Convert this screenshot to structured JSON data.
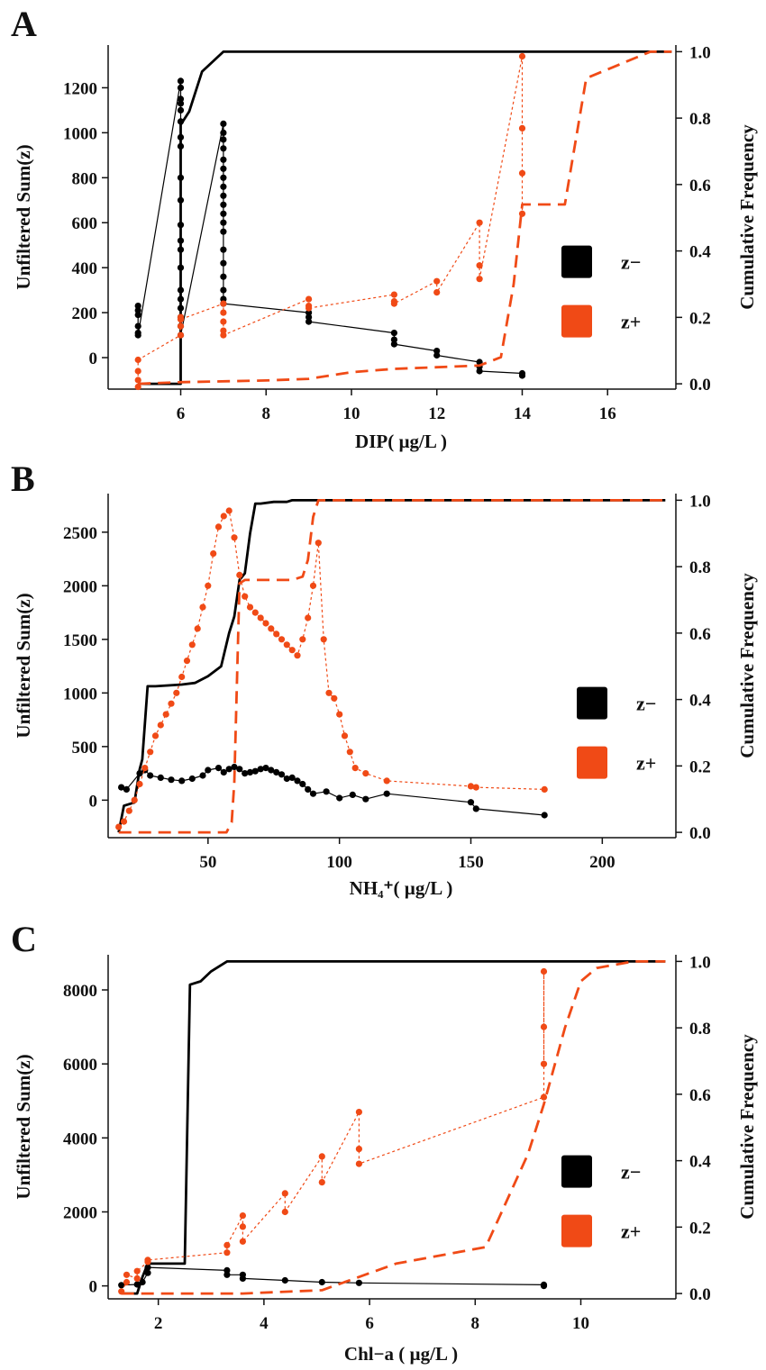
{
  "colors": {
    "z_minus": "#000000",
    "z_plus": "#f04a16",
    "axis": "#111111"
  },
  "chart_data": [
    {
      "type": "line",
      "panel": "A",
      "xlabel": "DIP( µg/L )",
      "ylabel": "Unfiltered Sum(z)",
      "y2label": "Cumulative Frequency",
      "xlim": [
        4.3,
        17.6
      ],
      "ylim": [
        -140,
        1390
      ],
      "y2lim": [
        -0.016,
        1.02
      ],
      "xticks": [
        6,
        8,
        10,
        12,
        14,
        16
      ],
      "yticks": [
        0,
        200,
        400,
        600,
        800,
        1000,
        1200
      ],
      "y2ticks": [
        0.0,
        0.2,
        0.4,
        0.6,
        0.8,
        1.0
      ],
      "legend": [
        {
          "label": "z−",
          "color": "#000000"
        },
        {
          "label": "z+",
          "color": "#f04a16"
        }
      ],
      "legend_position": "center-right",
      "series": [
        {
          "name": "z− sum",
          "axis": "left",
          "style": "points-solid-thin",
          "color": "#000000",
          "x": [
            5,
            5,
            5,
            5,
            5,
            5,
            6,
            6,
            6,
            6,
            6,
            6,
            6,
            6,
            6,
            6,
            6,
            6,
            6,
            6,
            6,
            6,
            6,
            6,
            6,
            6,
            7,
            7,
            7,
            7,
            7,
            7,
            7,
            7,
            7,
            7,
            7,
            7,
            7,
            7,
            7,
            7,
            7,
            7,
            7,
            9,
            9,
            9,
            11,
            11,
            11,
            12,
            12,
            13,
            13,
            13,
            14,
            14
          ],
          "y": [
            230,
            210,
            190,
            140,
            110,
            100,
            1230,
            1200,
            1150,
            1130,
            1100,
            1050,
            980,
            940,
            800,
            700,
            590,
            520,
            480,
            400,
            300,
            260,
            220,
            180,
            140,
            100,
            1040,
            1000,
            970,
            930,
            880,
            840,
            800,
            760,
            720,
            680,
            640,
            600,
            560,
            480,
            420,
            360,
            300,
            260,
            240,
            200,
            180,
            160,
            110,
            80,
            60,
            30,
            10,
            -20,
            -40,
            -60,
            -70,
            -80
          ]
        },
        {
          "name": "z− cumulative",
          "axis": "right",
          "style": "solid-thick",
          "color": "#000000",
          "x": [
            5,
            5.4,
            6,
            6,
            6.2,
            6.5,
            7,
            17.5
          ],
          "y": [
            0.0,
            0.0,
            0.0,
            0.78,
            0.82,
            0.94,
            1.0,
            1.0
          ]
        },
        {
          "name": "z+ sum",
          "axis": "left",
          "style": "points-dotted-thin",
          "color": "#f04a16",
          "x": [
            5,
            5,
            5,
            5,
            6,
            6,
            6,
            6,
            7,
            7,
            7,
            7,
            7,
            9,
            9,
            9,
            11,
            11,
            11,
            12,
            12,
            13,
            13,
            13,
            14,
            14,
            14,
            14
          ],
          "y": [
            -130,
            -100,
            -60,
            -10,
            100,
            140,
            180,
            170,
            240,
            200,
            160,
            120,
            100,
            260,
            230,
            220,
            280,
            250,
            240,
            340,
            290,
            600,
            410,
            350,
            1340,
            1020,
            820,
            640
          ]
        },
        {
          "name": "z+ cumulative",
          "axis": "right",
          "style": "dashed-thick",
          "color": "#f04a16",
          "x": [
            5,
            6,
            8,
            9,
            10,
            11,
            12,
            13,
            13.5,
            13.8,
            14,
            15,
            15.5,
            17,
            17.5
          ],
          "y": [
            0.0,
            0.005,
            0.01,
            0.015,
            0.035,
            0.045,
            0.05,
            0.055,
            0.08,
            0.3,
            0.54,
            0.54,
            0.92,
            1.0,
            1.0
          ]
        }
      ]
    },
    {
      "type": "line",
      "panel": "B",
      "xlabel": "NH₄⁺( µg/L )",
      "ylabel": "Unfiltered Sum(z)",
      "y2label": "Cumulative Frequency",
      "xlim": [
        12,
        228
      ],
      "ylim": [
        -350,
        2860
      ],
      "y2lim": [
        -0.016,
        1.02
      ],
      "xticks": [
        50,
        100,
        150,
        200
      ],
      "yticks": [
        0,
        500,
        1000,
        1500,
        2000,
        2500
      ],
      "y2ticks": [
        0.0,
        0.2,
        0.4,
        0.6,
        0.8,
        1.0
      ],
      "legend": [
        {
          "label": "z−",
          "color": "#000000"
        },
        {
          "label": "z+",
          "color": "#f04a16"
        }
      ],
      "legend_position": "center-right",
      "series": [
        {
          "name": "z− sum",
          "axis": "left",
          "style": "points-solid-thin",
          "color": "#000000",
          "x": [
            17,
            19,
            24,
            26,
            28,
            32,
            36,
            40,
            44,
            48,
            50,
            54,
            56,
            58,
            60,
            62,
            64,
            66,
            68,
            70,
            72,
            74,
            76,
            78,
            80,
            82,
            84,
            86,
            88,
            90,
            95,
            100,
            105,
            110,
            118,
            150,
            152,
            178
          ],
          "y": [
            120,
            100,
            250,
            280,
            230,
            210,
            190,
            180,
            200,
            230,
            280,
            300,
            260,
            290,
            310,
            290,
            250,
            260,
            270,
            290,
            300,
            280,
            260,
            240,
            200,
            210,
            180,
            150,
            100,
            60,
            80,
            20,
            50,
            10,
            60,
            -20,
            -80,
            -140
          ]
        },
        {
          "name": "z− cumulative",
          "axis": "right",
          "style": "solid-thick",
          "color": "#000000",
          "x": [
            16,
            18,
            22,
            24,
            25,
            27,
            30,
            40,
            45,
            50,
            55,
            58,
            60,
            62,
            64,
            66,
            68,
            70,
            75,
            80,
            82,
            90,
            100,
            110,
            200,
            224
          ],
          "y": [
            0.0,
            0.08,
            0.09,
            0.19,
            0.22,
            0.44,
            0.44,
            0.445,
            0.45,
            0.47,
            0.5,
            0.6,
            0.65,
            0.76,
            0.78,
            0.9,
            0.99,
            0.99,
            0.995,
            0.995,
            1.0,
            1.0,
            1.0,
            1.0,
            1.0,
            1.0
          ]
        },
        {
          "name": "z+ sum",
          "axis": "left",
          "style": "points-dotted-thin",
          "color": "#f04a16",
          "x": [
            16,
            18,
            20,
            22,
            24,
            26,
            28,
            30,
            32,
            34,
            36,
            38,
            40,
            42,
            44,
            46,
            48,
            50,
            52,
            54,
            56,
            58,
            60,
            62,
            64,
            66,
            68,
            70,
            72,
            74,
            76,
            78,
            80,
            82,
            84,
            86,
            88,
            90,
            92,
            94,
            96,
            98,
            100,
            102,
            104,
            106,
            110,
            118,
            150,
            152,
            178
          ],
          "y": [
            -250,
            -200,
            -100,
            0,
            150,
            300,
            450,
            600,
            700,
            800,
            900,
            1000,
            1150,
            1300,
            1450,
            1600,
            1800,
            2000,
            2300,
            2550,
            2650,
            2700,
            2450,
            2100,
            1900,
            1800,
            1750,
            1700,
            1650,
            1600,
            1550,
            1500,
            1450,
            1400,
            1350,
            1500,
            1700,
            2000,
            2400,
            1500,
            1000,
            950,
            800,
            600,
            450,
            300,
            250,
            180,
            130,
            120,
            100
          ]
        },
        {
          "name": "z+ cumulative",
          "axis": "right",
          "style": "dashed-thick",
          "color": "#f04a16",
          "x": [
            16,
            20,
            57,
            59,
            60,
            62,
            64,
            66,
            70,
            80,
            82,
            86,
            88,
            90,
            92,
            100,
            150,
            200,
            224
          ],
          "y": [
            0.0,
            0.0,
            0.0,
            0.03,
            0.15,
            0.75,
            0.76,
            0.76,
            0.76,
            0.76,
            0.76,
            0.77,
            0.82,
            0.95,
            1.0,
            1.0,
            1.0,
            1.0,
            1.0
          ]
        }
      ]
    },
    {
      "type": "line",
      "panel": "C",
      "xlabel": "Chl−a ( µg/L )",
      "ylabel": "Unfiltered Sum(z)",
      "y2label": "Cumulative Frequency",
      "xlim": [
        1.05,
        11.8
      ],
      "ylim": [
        -350,
        8950
      ],
      "y2lim": [
        -0.016,
        1.02
      ],
      "xticks": [
        2,
        4,
        6,
        8,
        10
      ],
      "yticks": [
        0,
        2000,
        4000,
        6000,
        8000
      ],
      "y2ticks": [
        0.0,
        0.2,
        0.4,
        0.6,
        0.8,
        1.0
      ],
      "legend": [
        {
          "label": "z−",
          "color": "#000000"
        },
        {
          "label": "z+",
          "color": "#f04a16"
        }
      ],
      "legend_position": "center-right",
      "series": [
        {
          "name": "z− sum",
          "axis": "left",
          "style": "points-solid-thin",
          "color": "#000000",
          "x": [
            1.3,
            1.6,
            1.7,
            1.8,
            1.8,
            3.3,
            3.3,
            3.6,
            3.6,
            4.4,
            5.1,
            5.8,
            9.3,
            9.3
          ],
          "y": [
            20,
            40,
            100,
            350,
            500,
            420,
            300,
            300,
            200,
            150,
            100,
            80,
            30,
            0
          ]
        },
        {
          "name": "z− cumulative",
          "axis": "right",
          "style": "solid-thick",
          "color": "#000000",
          "x": [
            1.3,
            1.6,
            1.7,
            1.8,
            2.5,
            2.6,
            2.8,
            3.0,
            3.3,
            3.6,
            11.6
          ],
          "y": [
            0.0,
            0.0,
            0.05,
            0.09,
            0.09,
            0.93,
            0.94,
            0.97,
            1.0,
            1.0,
            1.0
          ]
        },
        {
          "name": "z+ sum",
          "axis": "left",
          "style": "points-dotted-thin",
          "color": "#f04a16",
          "x": [
            1.3,
            1.4,
            1.4,
            1.6,
            1.6,
            1.8,
            1.8,
            3.3,
            3.3,
            3.6,
            3.6,
            3.6,
            4.4,
            4.4,
            5.1,
            5.1,
            5.8,
            5.8,
            5.8,
            9.3,
            9.3,
            9.3,
            9.3
          ],
          "y": [
            -150,
            100,
            300,
            200,
            400,
            650,
            700,
            900,
            1100,
            1900,
            1600,
            1200,
            2500,
            2000,
            3500,
            2800,
            4700,
            3700,
            3300,
            5100,
            8500,
            7000,
            6000
          ]
        },
        {
          "name": "z+ cumulative",
          "axis": "right",
          "style": "dashed-thick",
          "color": "#f04a16",
          "x": [
            1.3,
            3.6,
            5.1,
            5.8,
            6.5,
            8.2,
            9.0,
            9.3,
            9.7,
            10.0,
            10.3,
            11.0,
            11.6
          ],
          "y": [
            0.0,
            0.0,
            0.01,
            0.05,
            0.09,
            0.14,
            0.42,
            0.57,
            0.8,
            0.94,
            0.98,
            1.0,
            1.0
          ]
        }
      ]
    }
  ]
}
